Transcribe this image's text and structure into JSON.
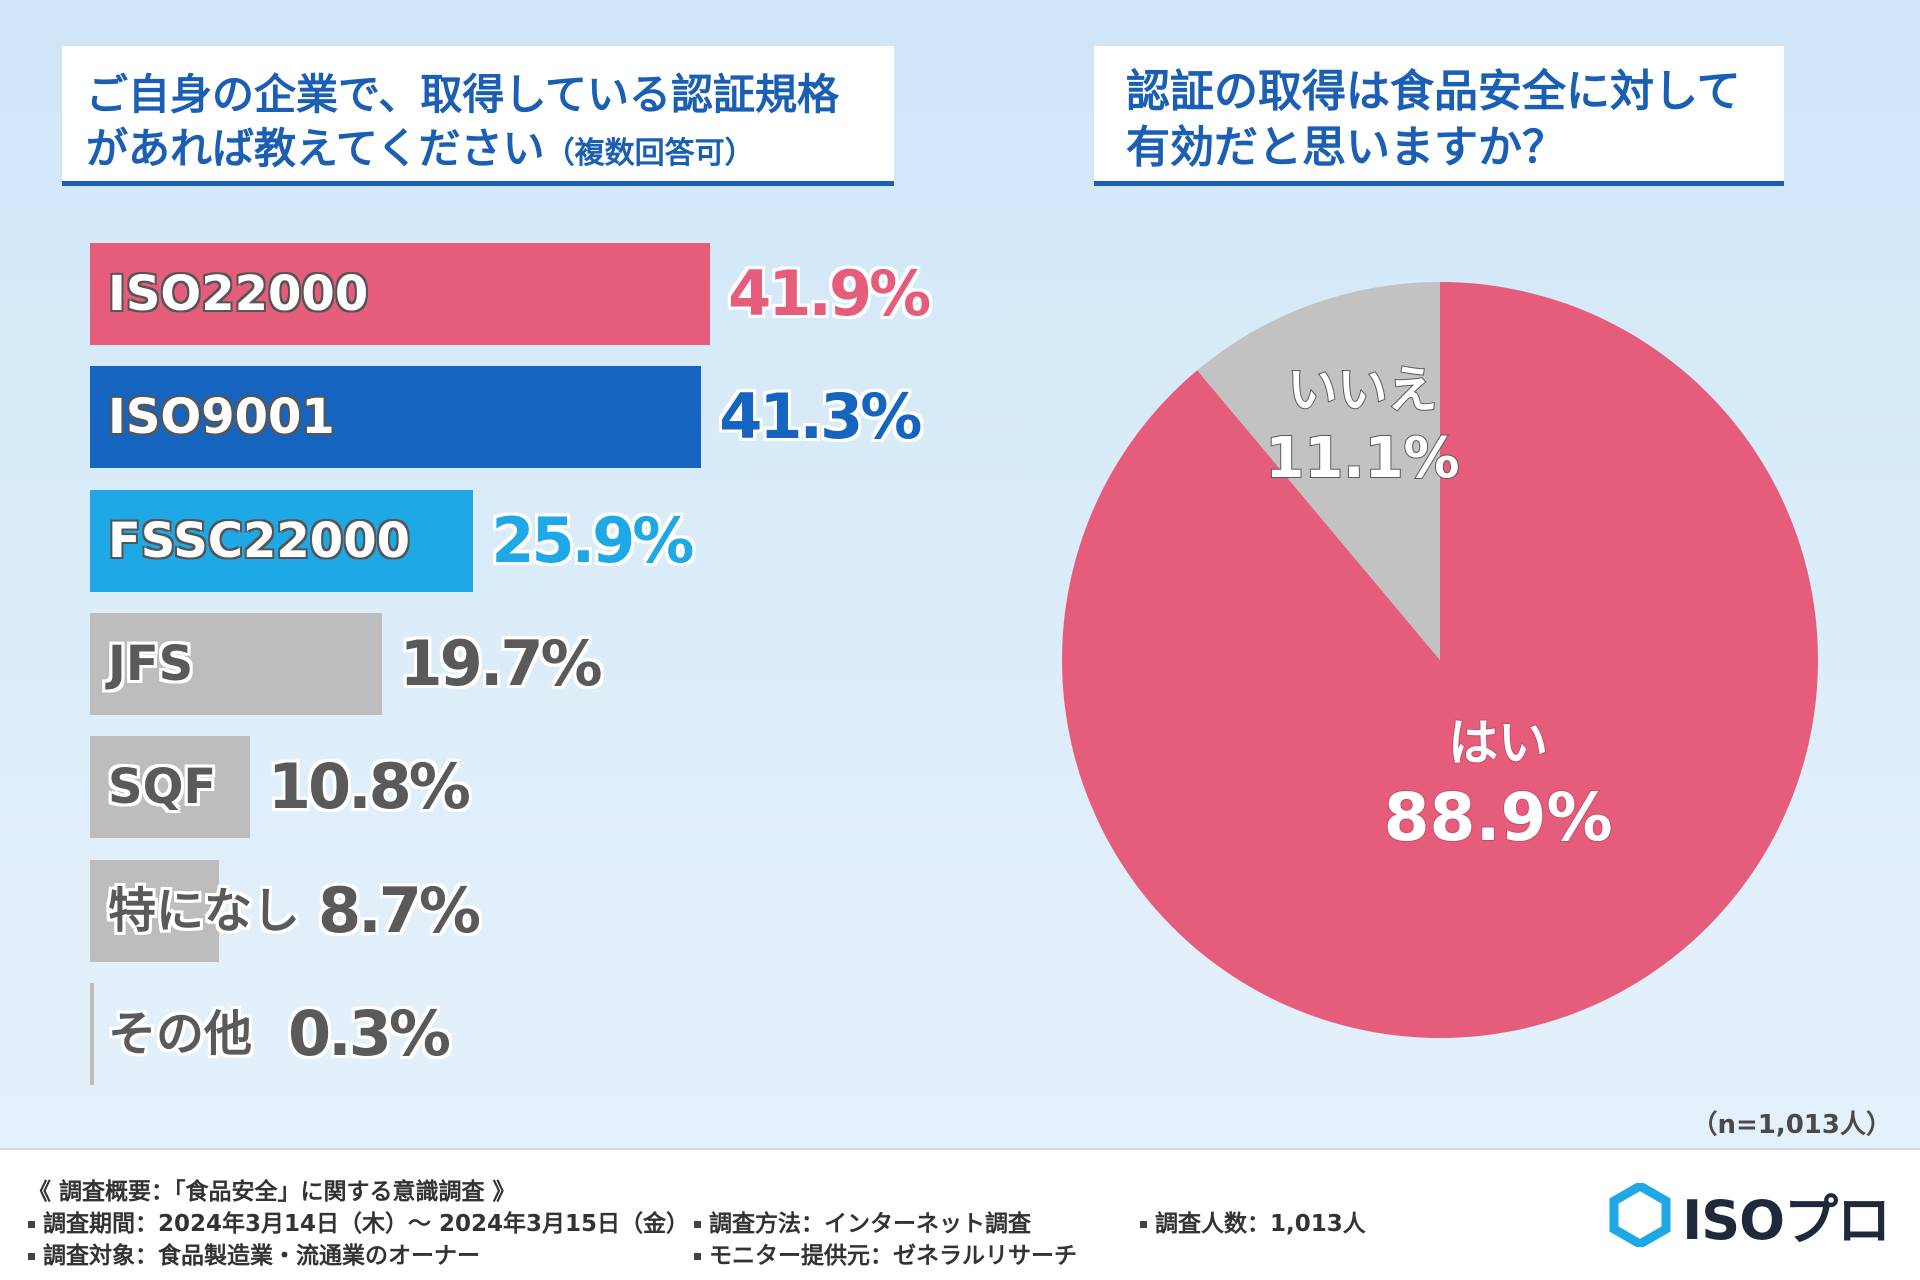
{
  "left_title": {
    "line1": "ご自身の企業で、取得している認証規格",
    "line2": "があれば教えてください",
    "note": "（複数回答可）"
  },
  "right_title": {
    "line1": "認証の取得は食品安全に対して",
    "line2": "有効だと思いますか？"
  },
  "chart_data": [
    {
      "type": "bar",
      "orientation": "horizontal",
      "categories": [
        "ISO22000",
        "ISO9001",
        "FSSC22000",
        "JFS",
        "SQF",
        "特になし",
        "その他"
      ],
      "values": [
        41.9,
        41.3,
        25.9,
        19.7,
        10.8,
        8.7,
        0.3
      ],
      "value_labels": [
        "41.9%",
        "41.3%",
        "25.9%",
        "19.7%",
        "10.8%",
        "8.7%",
        "0.3%"
      ],
      "colors": [
        "#e65d7b",
        "#1565c0",
        "#1ea8e6",
        "#bdbdbd",
        "#bdbdbd",
        "#bdbdbd",
        "#bdbdbd"
      ],
      "value_colors": [
        "#e65d7b",
        "#1565c0",
        "#1ea8e6",
        "#5a5a5a",
        "#5a5a5a",
        "#5a5a5a",
        "#5a5a5a"
      ],
      "xlim": [
        0,
        100
      ]
    },
    {
      "type": "pie",
      "labels": [
        "はい",
        "いいえ"
      ],
      "values": [
        88.9,
        11.1
      ],
      "value_labels": [
        "88.9%",
        "11.1%"
      ],
      "colors": [
        "#e65d7b",
        "#c2c2c2"
      ]
    }
  ],
  "sample": "（n=1,013人）",
  "footer": {
    "heading": "《 調査概要：「食品安全」に関する意識調査 》",
    "period": "調査期間：2024年3月14日（木）～ 2024年3月15日（金）",
    "method": "調査方法：インターネット調査",
    "count": "調査人数：1,013人",
    "target": "調査対象：食品製造業・流通業のオーナー",
    "provider": "モニター提供元：ゼネラルリサーチ"
  },
  "logo": {
    "text": "ISOプロ",
    "color": "#1ea8e6"
  }
}
